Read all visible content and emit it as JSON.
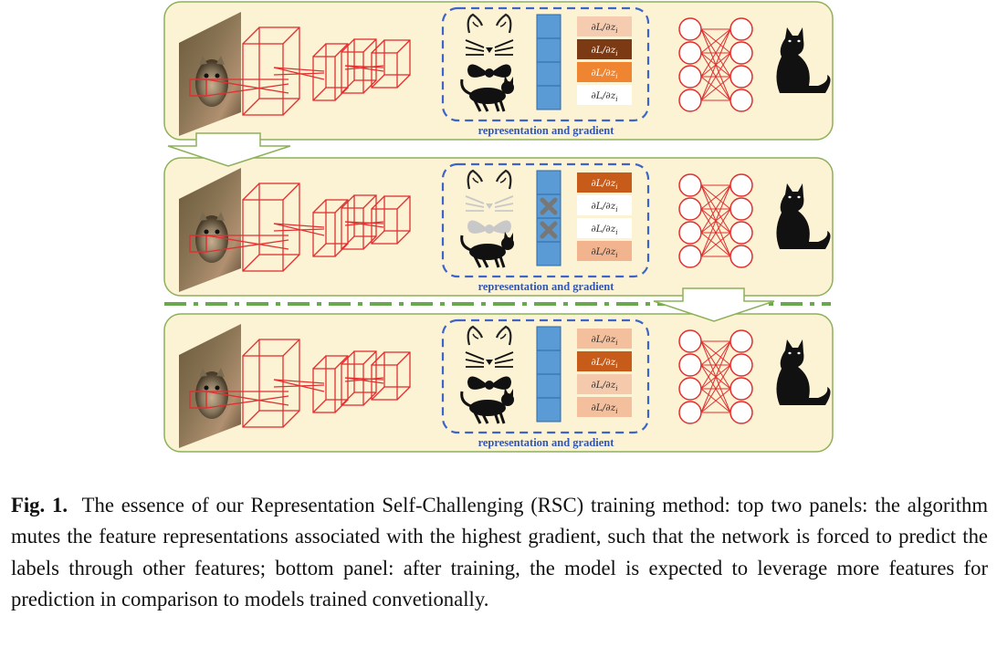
{
  "figure": {
    "panels": [
      {
        "id": "top",
        "representation_label": "representation and gradient",
        "features": [
          {
            "icon": "cat-face-outline-icon",
            "muted": false
          },
          {
            "icon": "bowtie-icon",
            "muted": false
          },
          {
            "icon": "walking-cat-icon",
            "muted": false
          }
        ],
        "vector_cells": [
          {
            "muted": false
          },
          {
            "muted": false
          },
          {
            "muted": false
          },
          {
            "muted": false
          }
        ],
        "gradients": [
          {
            "label": "∂L/∂z_i",
            "color": "#f6ccb0",
            "text_color": "#333333"
          },
          {
            "label": "∂L/∂z_i",
            "color": "#7b3a14",
            "text_color": "#ffffff"
          },
          {
            "label": "∂L/∂z_i",
            "color": "#ef8431",
            "text_color": "#ffffff"
          },
          {
            "label": "∂L/∂z_i",
            "color": "#ffffff",
            "text_color": "#333333"
          }
        ]
      },
      {
        "id": "middle",
        "representation_label": "representation and gradient",
        "features": [
          {
            "icon": "cat-face-outline-icon",
            "muted": false
          },
          {
            "icon": "bowtie-icon",
            "muted": true
          },
          {
            "icon": "walking-cat-icon",
            "muted": false
          }
        ],
        "vector_cells": [
          {
            "muted": false
          },
          {
            "muted": true
          },
          {
            "muted": true
          },
          {
            "muted": false
          }
        ],
        "gradients": [
          {
            "label": "∂L/∂z_i",
            "color": "#c65b1a",
            "text_color": "#ffffff"
          },
          {
            "label": "∂L/∂z_i",
            "color": "#ffffff",
            "text_color": "#333333"
          },
          {
            "label": "∂L/∂z_i",
            "color": "#ffffff",
            "text_color": "#333333"
          },
          {
            "label": "∂L/∂z_i",
            "color": "#f2b48f",
            "text_color": "#333333"
          }
        ]
      },
      {
        "id": "bottom",
        "representation_label": "representation and gradient",
        "features": [
          {
            "icon": "cat-face-outline-icon",
            "muted": false
          },
          {
            "icon": "bowtie-icon",
            "muted": false
          },
          {
            "icon": "walking-cat-icon",
            "muted": false
          }
        ],
        "vector_cells": [
          {
            "muted": false
          },
          {
            "muted": false
          },
          {
            "muted": false
          },
          {
            "muted": false
          }
        ],
        "gradients": [
          {
            "label": "∂L/∂z_i",
            "color": "#f4bf9c",
            "text_color": "#333333"
          },
          {
            "label": "∂L/∂z_i",
            "color": "#c65b1a",
            "text_color": "#ffffff"
          },
          {
            "label": "∂L/∂z_i",
            "color": "#f4c9ac",
            "text_color": "#333333"
          },
          {
            "label": "∂L/∂z_i",
            "color": "#f4bf9c",
            "text_color": "#333333"
          }
        ]
      }
    ],
    "colors": {
      "panel_fill": "#fcf2d4",
      "panel_border": "#8db05a",
      "cnn_red": "#e03030",
      "dash_blue": "#3d64c8",
      "vector_blue": "#5b9bd5",
      "separator_green": "#6aa84f"
    }
  },
  "caption": {
    "label": "Fig. 1.",
    "text": "The essence of our Representation Self-Challenging (RSC) training method: top two panels: the algorithm mutes the feature representations associated with the highest gradient, such that the network is forced to predict the labels through other features; bottom panel: after training, the model is expected to leverage more features for prediction in comparison to models trained convetionally."
  }
}
